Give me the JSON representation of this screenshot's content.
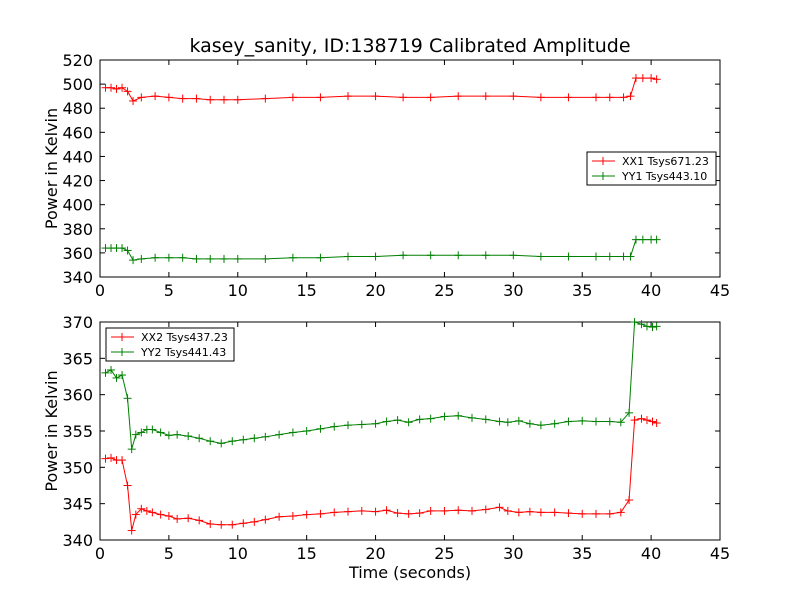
{
  "chart_data": [
    {
      "type": "line",
      "title": "kasey_sanity, ID:138719 Calibrated Amplitude",
      "xlabel": "",
      "ylabel": "Power in Kelvin",
      "xlim": [
        0,
        45
      ],
      "ylim": [
        340,
        520
      ],
      "xticks": [
        "0",
        "5",
        "10",
        "15",
        "20",
        "25",
        "30",
        "35",
        "40",
        "45"
      ],
      "yticks": [
        "340",
        "360",
        "380",
        "400",
        "420",
        "440",
        "460",
        "480",
        "500",
        "520"
      ],
      "legend_position": "center-right",
      "series": [
        {
          "name": "XX1 Tsys671.23",
          "color": "#ff0000",
          "x": [
            0.4,
            0.8,
            1.2,
            1.6,
            2.0,
            2.4,
            3.0,
            4.0,
            5.0,
            6.0,
            7.0,
            8.0,
            9.0,
            10.0,
            12.0,
            14.0,
            16.0,
            18.0,
            20.0,
            22.0,
            24.0,
            26.0,
            28.0,
            30.0,
            32.0,
            34.0,
            36.0,
            37.0,
            38.0,
            38.5,
            38.9,
            39.4,
            40.0,
            40.4
          ],
          "y": [
            497,
            497,
            496,
            497,
            494,
            486,
            489,
            490,
            489,
            488,
            488,
            487,
            487,
            487,
            488,
            489,
            489,
            490,
            490,
            489,
            489,
            490,
            490,
            490,
            489,
            489,
            489,
            489,
            489,
            490,
            505,
            505,
            505,
            504
          ]
        },
        {
          "name": "YY1 Tsys443.10",
          "color": "#008000",
          "x": [
            0.4,
            0.8,
            1.2,
            1.6,
            2.0,
            2.4,
            3.0,
            4.0,
            5.0,
            6.0,
            7.0,
            8.0,
            9.0,
            10.0,
            12.0,
            14.0,
            16.0,
            18.0,
            20.0,
            22.0,
            24.0,
            26.0,
            28.0,
            30.0,
            32.0,
            34.0,
            36.0,
            37.0,
            38.0,
            38.5,
            38.9,
            39.4,
            40.0,
            40.4
          ],
          "y": [
            364,
            364,
            364,
            364,
            362,
            354,
            355,
            356,
            356,
            356,
            355,
            355,
            355,
            355,
            355,
            356,
            356,
            357,
            357,
            358,
            358,
            358,
            358,
            358,
            357,
            357,
            357,
            357,
            357,
            357,
            371,
            371,
            371,
            371
          ]
        }
      ]
    },
    {
      "type": "line",
      "title": "",
      "xlabel": "Time (seconds)",
      "ylabel": "Power in Kelvin",
      "xlim": [
        0,
        45
      ],
      "ylim": [
        340,
        370
      ],
      "xticks": [
        "0",
        "5",
        "10",
        "15",
        "20",
        "25",
        "30",
        "35",
        "40",
        "45"
      ],
      "yticks": [
        "340",
        "345",
        "350",
        "355",
        "360",
        "365",
        "370"
      ],
      "legend_position": "top-left",
      "series": [
        {
          "name": "XX2 Tsys437.23",
          "color": "#ff0000",
          "x": [
            0.4,
            0.8,
            1.2,
            1.6,
            2.0,
            2.3,
            2.6,
            3.0,
            3.4,
            3.8,
            4.4,
            5.0,
            5.6,
            6.4,
            7.2,
            8.0,
            8.8,
            9.6,
            10.4,
            11.2,
            12.0,
            13.0,
            14.0,
            15.0,
            16.0,
            17.0,
            18.0,
            19.0,
            20.0,
            20.8,
            21.6,
            22.4,
            23.2,
            24.0,
            25.0,
            26.0,
            27.0,
            28.0,
            29.0,
            29.6,
            30.4,
            31.2,
            32.0,
            33.0,
            34.0,
            35.0,
            36.0,
            37.0,
            37.8,
            38.4,
            38.8,
            39.3,
            39.7,
            40.1,
            40.4
          ],
          "y": [
            351.2,
            351.3,
            351.0,
            351.0,
            347.5,
            341.3,
            343.5,
            344.3,
            344.0,
            343.8,
            343.5,
            343.3,
            342.9,
            343.0,
            342.7,
            342.2,
            342.1,
            342.1,
            342.3,
            342.5,
            342.8,
            343.2,
            343.3,
            343.5,
            343.6,
            343.8,
            343.9,
            344.0,
            343.9,
            344.1,
            343.7,
            343.6,
            343.7,
            344.0,
            344.0,
            344.1,
            344.0,
            344.2,
            344.5,
            344.0,
            343.8,
            343.9,
            343.8,
            343.8,
            343.7,
            343.6,
            343.6,
            343.6,
            343.8,
            345.5,
            356.5,
            356.7,
            356.5,
            356.3,
            356.1
          ]
        },
        {
          "name": "YY2 Tsys441.43",
          "color": "#008000",
          "x": [
            0.4,
            0.8,
            1.2,
            1.6,
            2.0,
            2.3,
            2.6,
            3.0,
            3.4,
            3.8,
            4.4,
            5.0,
            5.6,
            6.4,
            7.2,
            8.0,
            8.8,
            9.6,
            10.4,
            11.2,
            12.0,
            13.0,
            14.0,
            15.0,
            16.0,
            17.0,
            18.0,
            19.0,
            20.0,
            20.8,
            21.6,
            22.4,
            23.2,
            24.0,
            25.0,
            26.0,
            27.0,
            28.0,
            29.0,
            29.6,
            30.4,
            31.2,
            32.0,
            33.0,
            34.0,
            35.0,
            36.0,
            37.0,
            37.8,
            38.4,
            38.8,
            39.3,
            39.7,
            40.1,
            40.4
          ],
          "y": [
            363.0,
            363.4,
            362.3,
            362.7,
            359.5,
            352.5,
            354.5,
            354.8,
            355.2,
            355.2,
            354.8,
            354.4,
            354.5,
            354.3,
            354.0,
            353.6,
            353.3,
            353.6,
            353.8,
            354.0,
            354.2,
            354.5,
            354.8,
            355.0,
            355.3,
            355.6,
            355.8,
            355.9,
            356.0,
            356.3,
            356.5,
            356.2,
            356.6,
            356.7,
            357.0,
            357.1,
            356.8,
            356.6,
            356.3,
            356.2,
            356.4,
            356.0,
            355.8,
            356.0,
            356.3,
            356.4,
            356.3,
            356.3,
            356.2,
            357.5,
            370.0,
            369.7,
            369.4,
            369.3,
            369.4
          ]
        }
      ]
    }
  ]
}
